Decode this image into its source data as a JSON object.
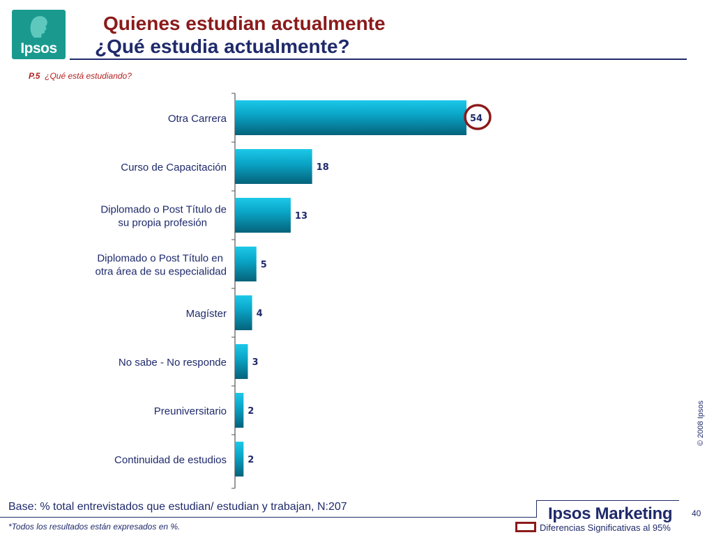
{
  "header": {
    "logo_text": "Ipsos",
    "title_line1": "Quienes estudian actualmente",
    "title_line2": "¿Qué estudia actualmente?"
  },
  "question": {
    "code": "P.5",
    "text": "¿Qué está estudiando?"
  },
  "chart_data": {
    "type": "bar",
    "orientation": "horizontal",
    "categories": [
      [
        "Otra Carrera"
      ],
      [
        "Curso de Capacitación"
      ],
      [
        "Diplomado o Post Título de",
        "su propia profesión"
      ],
      [
        "Diplomado o Post Título en",
        "otra área de su especialidad"
      ],
      [
        "Magíster"
      ],
      [
        "No sabe - No responde"
      ],
      [
        "Preuniversitario"
      ],
      [
        "Continuidad de estudios"
      ]
    ],
    "values": [
      54,
      18,
      13,
      5,
      4,
      3,
      2,
      2
    ],
    "highlighted_index": 0,
    "xlim": [
      0,
      60
    ],
    "grid": false,
    "colors": {
      "bar_light": "#1ec8e8",
      "bar_mid": "#0aa6c8",
      "bar_dark": "#05627a",
      "value_label": "#1f2a6b",
      "highlight_ring": "#8b1a1a",
      "axis": "#555555",
      "category_label": "#1f2a6b"
    }
  },
  "copyright": "© 2008 Ipsos",
  "base_text": "Base: % total entrevistados que estudian/ estudian y trabajan, N:207",
  "footnote": "*Todos los resultados están expresados en %.",
  "brand": "Ipsos Marketing",
  "page_number": "40",
  "legend": {
    "label": "Diferencias Significativas al 95%",
    "color": "#8b1a1a"
  }
}
